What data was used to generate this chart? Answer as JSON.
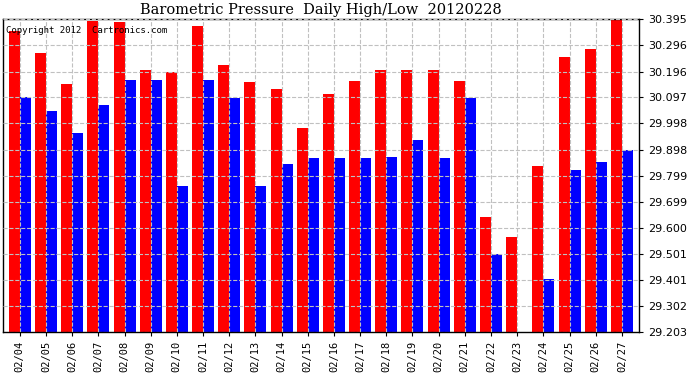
{
  "title": "Barometric Pressure  Daily High/Low  20120228",
  "copyright": "Copyright 2012  Cartronics.com",
  "dates": [
    "02/04",
    "02/05",
    "02/06",
    "02/07",
    "02/08",
    "02/09",
    "02/10",
    "02/11",
    "02/12",
    "02/13",
    "02/14",
    "02/15",
    "02/16",
    "02/17",
    "02/18",
    "02/19",
    "02/20",
    "02/21",
    "02/22",
    "02/23",
    "02/24",
    "02/25",
    "02/26",
    "02/27"
  ],
  "highs": [
    30.35,
    30.265,
    30.15,
    30.39,
    30.385,
    30.2,
    30.195,
    30.37,
    30.22,
    30.155,
    30.13,
    29.98,
    30.11,
    30.16,
    30.2,
    30.2,
    30.2,
    30.16,
    29.64,
    29.565,
    29.835,
    30.25,
    30.28,
    30.435
  ],
  "lows": [
    30.097,
    30.045,
    29.96,
    30.07,
    30.165,
    30.165,
    29.76,
    30.165,
    30.095,
    29.76,
    29.845,
    29.868,
    29.868,
    29.868,
    29.87,
    29.935,
    29.868,
    30.095,
    29.5,
    29.2,
    29.405,
    29.82,
    29.85,
    29.898
  ],
  "high_color": "#ff0000",
  "low_color": "#0000ff",
  "bg_color": "#ffffff",
  "grid_color": "#c0c0c0",
  "ymin": 29.203,
  "ymax": 30.395,
  "yticks": [
    30.395,
    30.296,
    30.196,
    30.097,
    29.998,
    29.898,
    29.799,
    29.699,
    29.6,
    29.501,
    29.401,
    29.302,
    29.203
  ]
}
